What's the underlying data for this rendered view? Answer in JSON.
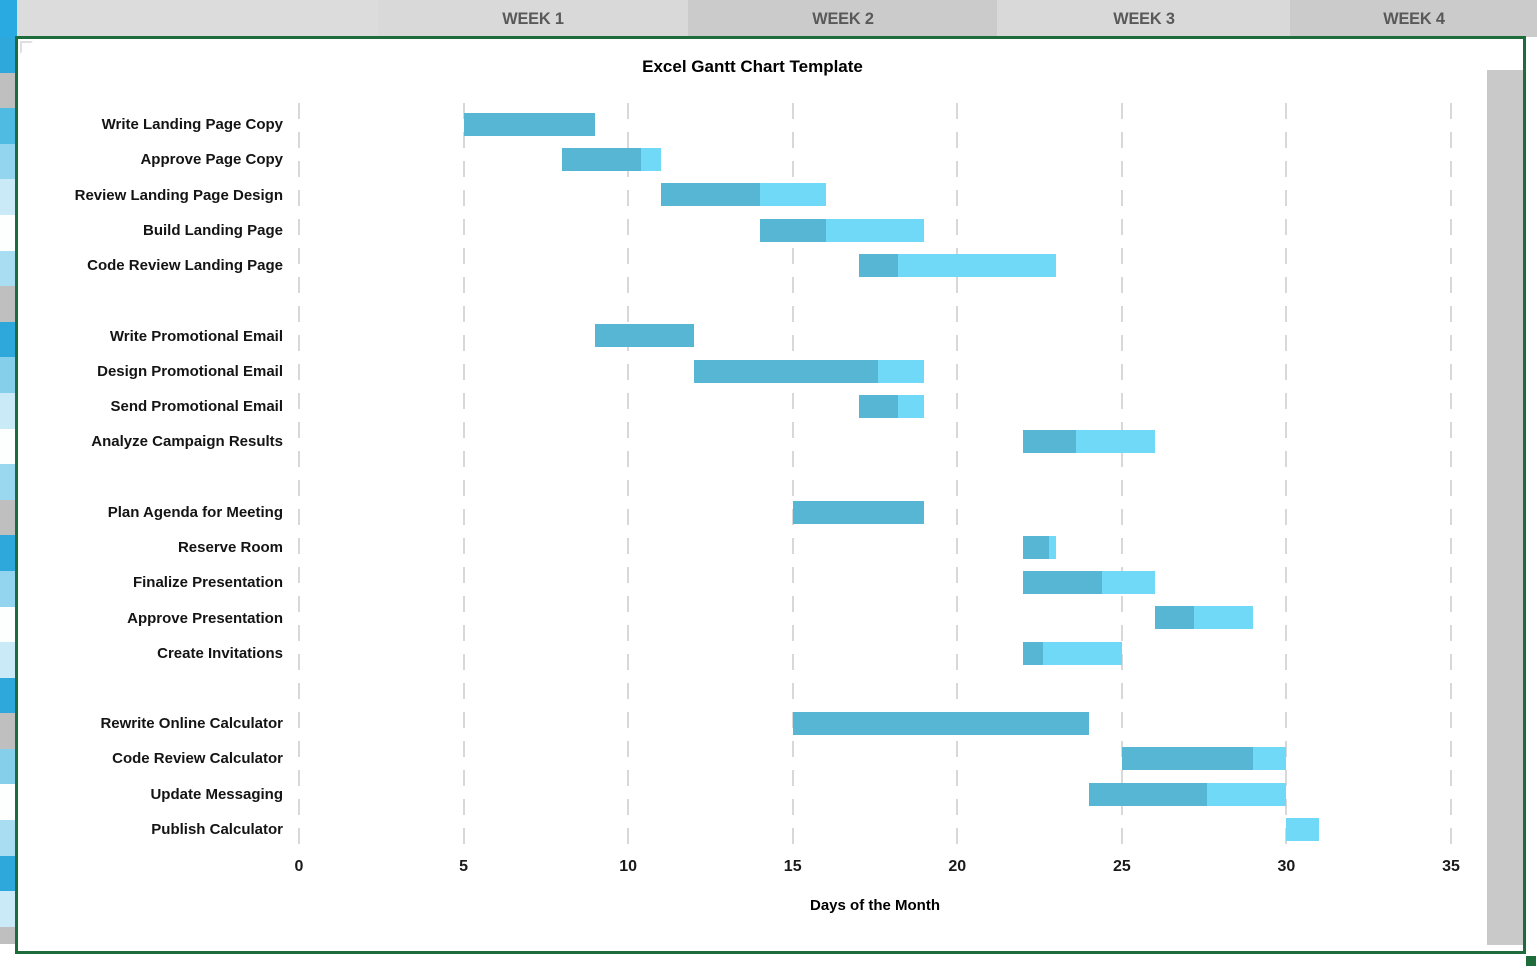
{
  "header": {
    "weeks": [
      {
        "label": "WEEK 1"
      },
      {
        "label": "WEEK 2"
      },
      {
        "label": "WEEK 3"
      },
      {
        "label": "WEEK 4"
      }
    ],
    "text_color": "#595959",
    "shade_light": "#D9D9D9",
    "shade_dark": "#CBCBCB"
  },
  "chart_data": {
    "type": "gantt",
    "title": "Excel Gantt Chart Template",
    "xlabel": "Days of the Month",
    "x_ticks": [
      0,
      5,
      10,
      15,
      20,
      25,
      30,
      35
    ],
    "xlim": [
      0,
      35
    ],
    "grid": "vertical-dashed",
    "groups": [
      {
        "tasks": [
          {
            "label": "Write Landing Page Copy",
            "start": 5,
            "end": 9,
            "percent_complete": 100
          },
          {
            "label": "Approve Page Copy",
            "start": 8,
            "end": 11,
            "percent_complete": 80
          },
          {
            "label": "Review Landing Page Design",
            "start": 11,
            "end": 16,
            "percent_complete": 60
          },
          {
            "label": "Build Landing Page",
            "start": 14,
            "end": 19,
            "percent_complete": 40
          },
          {
            "label": "Code Review Landing Page",
            "start": 17,
            "end": 23,
            "percent_complete": 20
          }
        ]
      },
      {
        "tasks": [
          {
            "label": "Write Promotional Email",
            "start": 9,
            "end": 12,
            "percent_complete": 100
          },
          {
            "label": "Design Promotional Email",
            "start": 12,
            "end": 19,
            "percent_complete": 80
          },
          {
            "label": "Send Promotional Email",
            "start": 17,
            "end": 19,
            "percent_complete": 60
          },
          {
            "label": "Analyze Campaign Results",
            "start": 22,
            "end": 26,
            "percent_complete": 40
          }
        ]
      },
      {
        "tasks": [
          {
            "label": "Plan Agenda for Meeting",
            "start": 15,
            "end": 19,
            "percent_complete": 100
          },
          {
            "label": "Reserve Room",
            "start": 22,
            "end": 23,
            "percent_complete": 80
          },
          {
            "label": "Finalize Presentation",
            "start": 22,
            "end": 26,
            "percent_complete": 60
          },
          {
            "label": "Approve Presentation",
            "start": 26,
            "end": 29,
            "percent_complete": 40
          },
          {
            "label": "Create Invitations",
            "start": 22,
            "end": 25,
            "percent_complete": 20
          }
        ]
      },
      {
        "tasks": [
          {
            "label": "Rewrite Online Calculator",
            "start": 15,
            "end": 24,
            "percent_complete": 100
          },
          {
            "label": "Code Review Calculator",
            "start": 25,
            "end": 30,
            "percent_complete": 80
          },
          {
            "label": "Update Messaging",
            "start": 24,
            "end": 30,
            "percent_complete": 60
          },
          {
            "label": "Publish Calculator",
            "start": 30,
            "end": 31,
            "percent_complete": 0
          }
        ]
      }
    ],
    "colors": {
      "bar_complete": "#57B6D3",
      "bar_remaining": "#70D9F7",
      "gridline": "#D8D8D8",
      "frame_border": "#1E6B3B"
    }
  },
  "left_strip_colors": [
    "#29ABE2",
    "#2EA7DB",
    "#BFBFBF",
    "#4FBAE2",
    "#93D5EE",
    "#C9EAF6",
    "#FDFEFE",
    "#A9DEF2",
    "#BFBFBF",
    "#2EA7DB",
    "#85CFEA",
    "#C9EAF6",
    "#FDFEFE",
    "#9AD8F0",
    "#BFBFBF",
    "#2EA7DB",
    "#93D5EE",
    "#FDFEFE",
    "#C9EAF6",
    "#2EA7DB",
    "#BFBFBF",
    "#85CFEA",
    "#FDFEFE",
    "#A9DEF2",
    "#2EA7DB",
    "#C9EAF6",
    "#BFBFBF"
  ]
}
